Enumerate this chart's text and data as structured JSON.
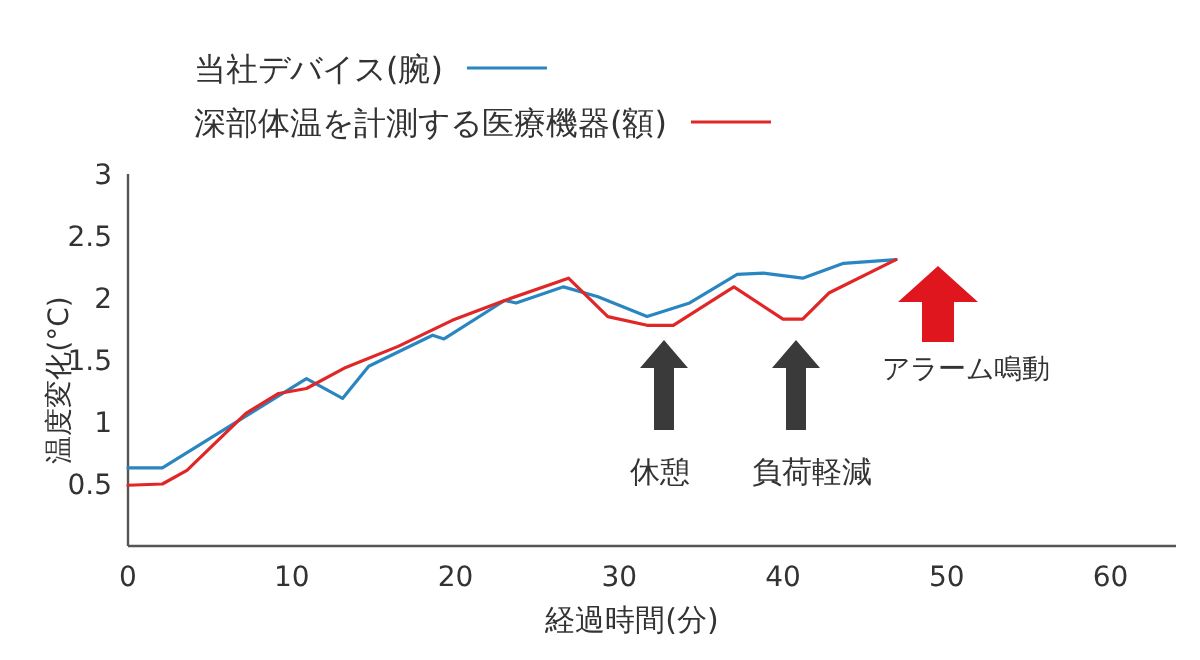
{
  "chart_data": {
    "type": "line",
    "xlabel": "経過時間(分)",
    "ylabel": "温度変化(°C)",
    "xlim": [
      0,
      64
    ],
    "ylim": [
      0,
      3
    ],
    "xticks": [
      0,
      10,
      20,
      30,
      40,
      50,
      60
    ],
    "yticks": [
      {
        "value": 0.5,
        "label": "0.5"
      },
      {
        "value": 1,
        "label": "1"
      },
      {
        "value": 1.5,
        "label": "1.5"
      },
      {
        "value": 2,
        "label": "2"
      },
      {
        "value": 2.5,
        "label": "2.5"
      },
      {
        "value": 3,
        "label": "3"
      }
    ],
    "legend": "top",
    "grid": false,
    "marker": "none",
    "line_style": "solid",
    "series": [
      {
        "name": "当社デバイス(腕)",
        "color": "#2a86c0",
        "x": [
          0,
          2.1,
          10.9,
          13.1,
          14.7,
          18.6,
          19.3,
          23,
          23.7,
          26.6,
          28.7,
          31.7,
          34.3,
          37.2,
          38.8,
          41.2,
          43.7,
          46.9
        ],
        "values": [
          0.63,
          0.63,
          1.35,
          1.19,
          1.45,
          1.7,
          1.67,
          1.98,
          1.96,
          2.09,
          2.01,
          1.85,
          1.96,
          2.19,
          2.2,
          2.16,
          2.28,
          2.31
        ]
      },
      {
        "name": "深部体温を計測する医療機器(額)",
        "color": "#e02626",
        "x": [
          0,
          2.1,
          3.6,
          7.2,
          9.2,
          10.9,
          13.3,
          16.5,
          19.8,
          23,
          26.9,
          29.3,
          31.7,
          33.3,
          37,
          40,
          41.2,
          42.8,
          46.9
        ],
        "values": [
          0.49,
          0.5,
          0.61,
          1.07,
          1.23,
          1.27,
          1.44,
          1.61,
          1.82,
          1.98,
          2.16,
          1.85,
          1.78,
          1.78,
          2.09,
          1.83,
          1.83,
          2.04,
          2.31
        ]
      }
    ],
    "annotations": [
      "休憩",
      "負荷軽減",
      "アラーム鳴動"
    ]
  }
}
